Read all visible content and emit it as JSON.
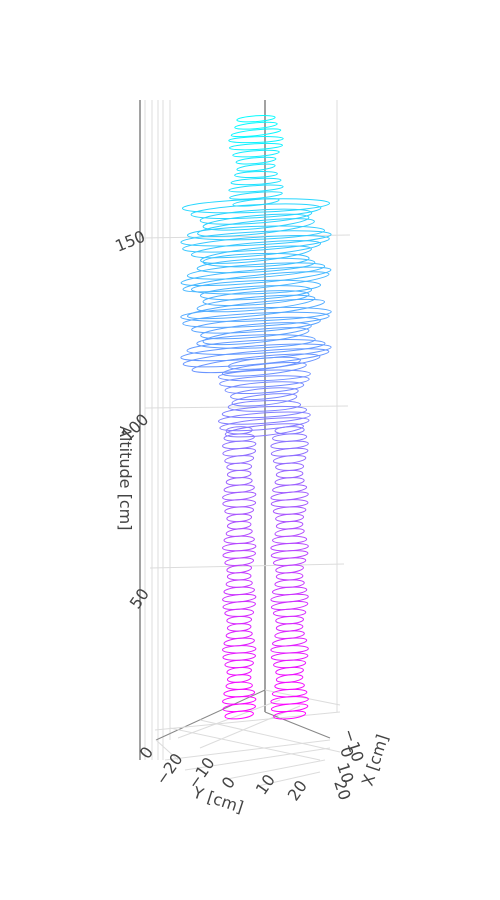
{
  "chart_data": {
    "type": "line3d",
    "title": "",
    "axes": {
      "x": {
        "title": "X [cm]",
        "ticks": [
          -10,
          0,
          10,
          20
        ]
      },
      "y": {
        "title": "Y [cm]",
        "ticks": [
          -20,
          -10,
          0,
          10,
          20
        ]
      },
      "z": {
        "title": "Altitude [cm]",
        "ticks": [
          0,
          50,
          100,
          150
        ]
      }
    },
    "z_tick_labels": [
      "0",
      "50",
      "100",
      "150"
    ],
    "y_tick_labels": [
      "−20",
      "−10",
      "0",
      "10",
      "20"
    ],
    "x_tick_labels": [
      "−10",
      "0",
      "10",
      "20"
    ],
    "colorscale": [
      "#ff00ff",
      "#7f7fff",
      "#00ffff"
    ],
    "z_range": [
      0,
      180
    ],
    "grid": true,
    "series": [
      {
        "segments": [
          {
            "z_start": 0,
            "z_end": 85,
            "center_y": -4,
            "center_x": 0,
            "radius_x": 4.0,
            "radius_y": 2.8,
            "rings": 40
          },
          {
            "z_start": 0,
            "z_end": 85,
            "center_y": 8,
            "center_x": 0,
            "radius_x": 4.5,
            "radius_y": 2.8,
            "rings": 40
          },
          {
            "z_start": 85,
            "z_end": 105,
            "center_y": 2,
            "center_x": 0,
            "radius_x": 11,
            "radius_y": 4,
            "rings": 12
          },
          {
            "z_start": 105,
            "z_end": 152,
            "center_y": 0,
            "center_x": 0,
            "radius_x": 18,
            "radius_y": 5,
            "rings": 30
          },
          {
            "z_start": 153,
            "z_end": 178,
            "center_y": 0,
            "center_x": 0,
            "radius_x": 6.5,
            "radius_y": 2.2,
            "rings": 13
          }
        ]
      }
    ]
  }
}
